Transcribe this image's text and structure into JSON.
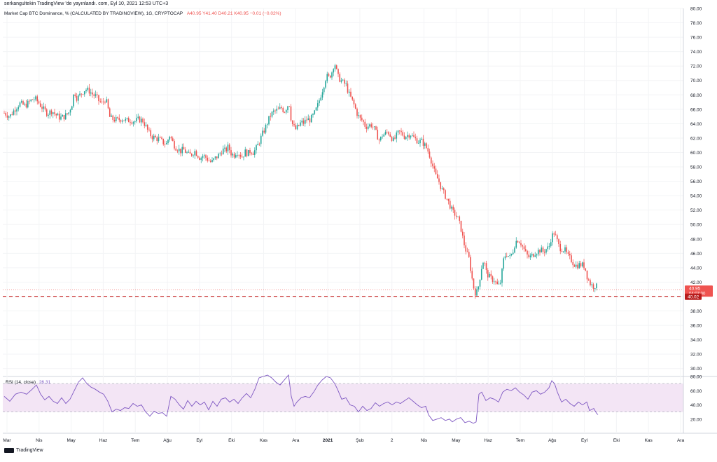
{
  "header": {
    "publisher_line": "serkangultekin TradingView 'de yayınlandı. com, Eyl 10, 2021 12:53 UTC+3"
  },
  "legend": {
    "symbol_text": "Market Cap BTC Dominance, % (CALCULATED BY TRADINGVIEW), 1G, CRYPTOCAP",
    "ohlc_text": "A40.95  Y41.40  D40.21  K40.95  −0.01 (−0.02%)"
  },
  "rsi": {
    "label": "RSI (14, close)",
    "value_text": "26.31"
  },
  "price_tags": {
    "last": "40.95",
    "countdown": "04:07:00",
    "line": "40.02"
  },
  "footer": {
    "logo_text": "TradingView"
  },
  "colors": {
    "up": "#26a69a",
    "down": "#ef5350",
    "rsi_line": "#7e57c2",
    "rsi_band": "#f3e5f5",
    "dashed_line": "#c62828"
  },
  "chart_data": [
    {
      "type": "candlestick",
      "ylim": [
        29,
        80
      ],
      "y_ticks": [
        "80.00",
        "78.00",
        "76.00",
        "74.00",
        "72.00",
        "70.00",
        "68.00",
        "66.00",
        "64.00",
        "62.00",
        "60.00",
        "58.00",
        "56.00",
        "54.00",
        "52.00",
        "50.00",
        "48.00",
        "46.00",
        "44.00",
        "42.00",
        "40.00",
        "38.00",
        "36.00",
        "34.00",
        "32.00",
        "30.00"
      ],
      "x_ticks": [
        "Mar",
        "Nis",
        "May",
        "Haz",
        "Tem",
        "Ağu",
        "Eyl",
        "Eki",
        "Kas",
        "Ara",
        "2021",
        "Şub",
        "2",
        "Nis",
        "May",
        "Haz",
        "Tem",
        "Ağu",
        "Eyl",
        "Eki",
        "Kas",
        "Ara"
      ],
      "horizontal_line": 40.02,
      "last_close": 40.95,
      "close_path": [
        [
          0,
          65.5
        ],
        [
          8,
          65
        ],
        [
          15,
          66
        ],
        [
          22,
          66.8
        ],
        [
          30,
          66.5
        ],
        [
          38,
          67.2
        ],
        [
          44,
          67.5
        ],
        [
          50,
          66.8
        ],
        [
          56,
          66
        ],
        [
          62,
          65.4
        ],
        [
          68,
          65.8
        ],
        [
          74,
          65.2
        ],
        [
          80,
          64.8
        ],
        [
          86,
          65
        ],
        [
          92,
          65.5
        ],
        [
          97,
          66.8
        ],
        [
          100,
          68.5
        ],
        [
          104,
          67.5
        ],
        [
          110,
          68.2
        ],
        [
          116,
          68.8
        ],
        [
          122,
          68.5
        ],
        [
          127,
          68
        ],
        [
          131,
          67.8
        ],
        [
          135,
          67.2
        ],
        [
          140,
          66.8
        ],
        [
          145,
          67.5
        ],
        [
          148,
          66.2
        ],
        [
          151,
          64.8
        ],
        [
          156,
          64.6
        ],
        [
          162,
          64.5
        ],
        [
          168,
          64.7
        ],
        [
          174,
          64.4
        ],
        [
          180,
          64.5
        ],
        [
          186,
          64.3
        ],
        [
          192,
          64.6
        ],
        [
          198,
          64.4
        ],
        [
          203,
          63.5
        ],
        [
          206,
          62.8
        ],
        [
          211,
          62.2
        ],
        [
          216,
          62
        ],
        [
          222,
          61.8
        ],
        [
          228,
          61.3
        ],
        [
          232,
          61.2
        ],
        [
          236,
          62.4
        ],
        [
          240,
          61.6
        ],
        [
          244,
          60.8
        ],
        [
          248,
          60.5
        ],
        [
          252,
          60.2
        ],
        [
          256,
          60.4
        ],
        [
          260,
          60
        ],
        [
          264,
          59.6
        ],
        [
          268,
          59.8
        ],
        [
          272,
          60.2
        ],
        [
          276,
          59.7
        ],
        [
          280,
          59.2
        ],
        [
          284,
          59.6
        ],
        [
          288,
          59.3
        ],
        [
          292,
          58.9
        ],
        [
          296,
          58.6
        ],
        [
          300,
          59.1
        ],
        [
          304,
          59.4
        ],
        [
          308,
          59.8
        ],
        [
          312,
          60.4
        ],
        [
          316,
          60.2
        ],
        [
          320,
          60.8
        ],
        [
          324,
          59.9
        ],
        [
          328,
          59.6
        ],
        [
          332,
          60.2
        ],
        [
          336,
          59.8
        ],
        [
          340,
          59.4
        ],
        [
          344,
          60.1
        ],
        [
          348,
          59.8
        ],
        [
          352,
          60.3
        ],
        [
          356,
          60
        ],
        [
          360,
          60.6
        ],
        [
          364,
          61.4
        ],
        [
          368,
          62.4
        ],
        [
          372,
          63.2
        ],
        [
          376,
          64.2
        ],
        [
          380,
          65.1
        ],
        [
          384,
          65.6
        ],
        [
          388,
          65.8
        ],
        [
          392,
          65.9
        ],
        [
          396,
          66.2
        ],
        [
          400,
          65.7
        ],
        [
          404,
          66.4
        ],
        [
          407,
          66.9
        ],
        [
          410,
          64.4
        ],
        [
          413,
          63.6
        ],
        [
          416,
          63.2
        ],
        [
          420,
          63.6
        ],
        [
          424,
          64.2
        ],
        [
          428,
          64.1
        ],
        [
          432,
          64.6
        ],
        [
          436,
          64.5
        ],
        [
          440,
          64.9
        ],
        [
          444,
          65.6
        ],
        [
          448,
          66.6
        ],
        [
          452,
          67.9
        ],
        [
          456,
          69.2
        ],
        [
          460,
          70.6
        ],
        [
          464,
          70.4
        ],
        [
          468,
          71.2
        ],
        [
          471,
          72.3
        ],
        [
          473,
          72.2
        ],
        [
          476,
          70.6
        ],
        [
          480,
          70.1
        ],
        [
          484,
          69.7
        ],
        [
          488,
          69.4
        ],
        [
          492,
          68.2
        ],
        [
          496,
          67.4
        ],
        [
          500,
          66.5
        ],
        [
          504,
          65.4
        ],
        [
          508,
          64.7
        ],
        [
          512,
          64.4
        ],
        [
          516,
          63.6
        ],
        [
          520,
          63.7
        ],
        [
          524,
          63.9
        ],
        [
          528,
          63.4
        ],
        [
          532,
          62.5
        ],
        [
          536,
          61.6
        ],
        [
          540,
          62.4
        ],
        [
          544,
          62.6
        ],
        [
          548,
          62.9
        ],
        [
          552,
          62.3
        ],
        [
          556,
          61.6
        ],
        [
          560,
          62.3
        ],
        [
          564,
          62.9
        ],
        [
          568,
          62.6
        ],
        [
          572,
          62.2
        ],
        [
          576,
          62.4
        ],
        [
          580,
          62.6
        ],
        [
          584,
          62.1
        ],
        [
          588,
          61.8
        ],
        [
          592,
          61.5
        ],
        [
          596,
          61.6
        ],
        [
          600,
          61.1
        ],
        [
          604,
          60.5
        ],
        [
          608,
          59.5
        ],
        [
          612,
          58.1
        ],
        [
          616,
          56.8
        ],
        [
          620,
          56.2
        ],
        [
          624,
          55.1
        ],
        [
          628,
          54.3
        ],
        [
          632,
          53.6
        ],
        [
          636,
          52.8
        ],
        [
          640,
          51.8
        ],
        [
          644,
          51.4
        ],
        [
          648,
          50.8
        ],
        [
          652,
          49.6
        ],
        [
          656,
          47.6
        ],
        [
          660,
          46.2
        ],
        [
          664,
          45.2
        ],
        [
          667,
          43.2
        ],
        [
          670,
          41.4
        ],
        [
          673,
          40.5
        ],
        [
          676,
          40.7
        ],
        [
          679,
          42.4
        ],
        [
          682,
          44.2
        ],
        [
          685,
          45.2
        ],
        [
          688,
          43.5
        ],
        [
          692,
          42.8
        ],
        [
          696,
          42.4
        ],
        [
          700,
          42.3
        ],
        [
          704,
          41.6
        ],
        [
          708,
          41.5
        ],
        [
          711,
          43.5
        ],
        [
          714,
          45.6
        ],
        [
          718,
          45.9
        ],
        [
          722,
          45.4
        ],
        [
          726,
          46.1
        ],
        [
          730,
          47.6
        ],
        [
          734,
          47.9
        ],
        [
          738,
          47.4
        ],
        [
          742,
          46.6
        ],
        [
          746,
          45.8
        ],
        [
          750,
          45.4
        ],
        [
          754,
          45.7
        ],
        [
          758,
          46.1
        ],
        [
          762,
          46.3
        ],
        [
          766,
          46.5
        ],
        [
          770,
          46.2
        ],
        [
          774,
          46.6
        ],
        [
          778,
          46.8
        ],
        [
          781,
          48.1
        ],
        [
          785,
          48.9
        ],
        [
          789,
          47.9
        ],
        [
          793,
          46.8
        ],
        [
          797,
          46.6
        ],
        [
          801,
          46.4
        ],
        [
          805,
          45.6
        ],
        [
          809,
          45.2
        ],
        [
          813,
          44.6
        ],
        [
          817,
          44.3
        ],
        [
          821,
          44.4
        ],
        [
          825,
          44.4
        ],
        [
          829,
          44.2
        ],
        [
          833,
          42.6
        ],
        [
          837,
          41.8
        ],
        [
          841,
          41.4
        ],
        [
          845,
          41.6
        ],
        [
          848,
          40.95
        ]
      ]
    },
    {
      "type": "line",
      "ylim": [
        0,
        80
      ],
      "y_ticks": [
        "80.00",
        "60.00",
        "40.00",
        "20.00"
      ],
      "upper_band": 70,
      "lower_band": 30,
      "last_value": 26.31,
      "values": [
        [
          0,
          52
        ],
        [
          8,
          45
        ],
        [
          16,
          55
        ],
        [
          24,
          58
        ],
        [
          32,
          55
        ],
        [
          40,
          62
        ],
        [
          46,
          68
        ],
        [
          52,
          55
        ],
        [
          58,
          47
        ],
        [
          64,
          52
        ],
        [
          70,
          45
        ],
        [
          76,
          42
        ],
        [
          82,
          50
        ],
        [
          88,
          42
        ],
        [
          94,
          48
        ],
        [
          100,
          60
        ],
        [
          106,
          72
        ],
        [
          112,
          78
        ],
        [
          118,
          70
        ],
        [
          124,
          65
        ],
        [
          130,
          62
        ],
        [
          136,
          58
        ],
        [
          142,
          55
        ],
        [
          148,
          45
        ],
        [
          154,
          30
        ],
        [
          160,
          34
        ],
        [
          166,
          32
        ],
        [
          172,
          36
        ],
        [
          178,
          35
        ],
        [
          184,
          42
        ],
        [
          190,
          38
        ],
        [
          196,
          40
        ],
        [
          202,
          30
        ],
        [
          208,
          24
        ],
        [
          214,
          31
        ],
        [
          220,
          28
        ],
        [
          226,
          29
        ],
        [
          232,
          24
        ],
        [
          238,
          52
        ],
        [
          244,
          48
        ],
        [
          250,
          40
        ],
        [
          256,
          34
        ],
        [
          262,
          46
        ],
        [
          268,
          38
        ],
        [
          274,
          45
        ],
        [
          280,
          40
        ],
        [
          286,
          44
        ],
        [
          292,
          33
        ],
        [
          298,
          45
        ],
        [
          304,
          38
        ],
        [
          310,
          48
        ],
        [
          316,
          50
        ],
        [
          322,
          44
        ],
        [
          328,
          48
        ],
        [
          334,
          42
        ],
        [
          340,
          50
        ],
        [
          346,
          56
        ],
        [
          352,
          50
        ],
        [
          358,
          62
        ],
        [
          364,
          78
        ],
        [
          370,
          80
        ],
        [
          376,
          82
        ],
        [
          382,
          78
        ],
        [
          388,
          72
        ],
        [
          394,
          68
        ],
        [
          400,
          75
        ],
        [
          406,
          82
        ],
        [
          410,
          52
        ],
        [
          414,
          38
        ],
        [
          418,
          44
        ],
        [
          424,
          50
        ],
        [
          430,
          52
        ],
        [
          436,
          50
        ],
        [
          442,
          58
        ],
        [
          448,
          68
        ],
        [
          454,
          75
        ],
        [
          460,
          80
        ],
        [
          466,
          78
        ],
        [
          472,
          70
        ],
        [
          476,
          62
        ],
        [
          482,
          48
        ],
        [
          488,
          50
        ],
        [
          494,
          40
        ],
        [
          500,
          38
        ],
        [
          506,
          30
        ],
        [
          512,
          38
        ],
        [
          518,
          32
        ],
        [
          524,
          35
        ],
        [
          530,
          43
        ],
        [
          536,
          38
        ],
        [
          542,
          42
        ],
        [
          548,
          44
        ],
        [
          554,
          40
        ],
        [
          560,
          44
        ],
        [
          566,
          42
        ],
        [
          572,
          46
        ],
        [
          578,
          50
        ],
        [
          584,
          45
        ],
        [
          590,
          40
        ],
        [
          596,
          36
        ],
        [
          602,
          38
        ],
        [
          606,
          26
        ],
        [
          612,
          18
        ],
        [
          618,
          20
        ],
        [
          624,
          22
        ],
        [
          630,
          18
        ],
        [
          636,
          20
        ],
        [
          640,
          16
        ],
        [
          646,
          20
        ],
        [
          652,
          22
        ],
        [
          658,
          15
        ],
        [
          664,
          17
        ],
        [
          670,
          14
        ],
        [
          674,
          16
        ],
        [
          678,
          55
        ],
        [
          682,
          58
        ],
        [
          688,
          46
        ],
        [
          694,
          50
        ],
        [
          700,
          48
        ],
        [
          706,
          44
        ],
        [
          712,
          58
        ],
        [
          718,
          62
        ],
        [
          724,
          60
        ],
        [
          730,
          64
        ],
        [
          736,
          58
        ],
        [
          742,
          54
        ],
        [
          748,
          48
        ],
        [
          754,
          58
        ],
        [
          760,
          60
        ],
        [
          766,
          55
        ],
        [
          772,
          58
        ],
        [
          778,
          64
        ],
        [
          782,
          74
        ],
        [
          786,
          70
        ],
        [
          790,
          58
        ],
        [
          796,
          44
        ],
        [
          802,
          48
        ],
        [
          808,
          42
        ],
        [
          814,
          38
        ],
        [
          820,
          44
        ],
        [
          826,
          40
        ],
        [
          832,
          44
        ],
        [
          836,
          32
        ],
        [
          842,
          35
        ],
        [
          846,
          28
        ],
        [
          848,
          26.31
        ]
      ]
    }
  ]
}
